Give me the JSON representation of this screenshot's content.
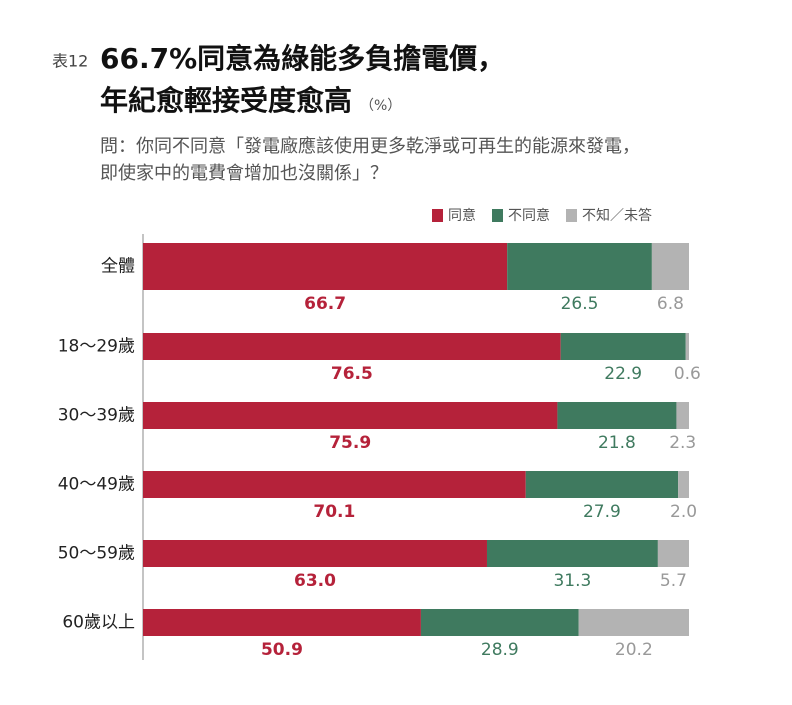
{
  "chart_data": {
    "type": "stacked_bar_horizontal",
    "label": "表12",
    "title_lines": [
      "66.7%同意為綠能多負擔電價，",
      "年紀愈輕接受度愈高"
    ],
    "unit": "（%）",
    "question_lines": [
      "問：你同不同意「發電廠應該使用更多乾淨或可再生的能源來發電，",
      "即使家中的電費會增加也沒關係」？"
    ],
    "categories": [
      "全體",
      "18～29歲",
      "30～39歲",
      "40～49歲",
      "50～59歲",
      "60歲以上"
    ],
    "xlim": [
      0,
      100
    ],
    "series": [
      {
        "name": "同意",
        "color": "#b5223a",
        "values": [
          66.7,
          76.5,
          75.9,
          70.1,
          63.0,
          50.9
        ],
        "value_labels": [
          "66.7",
          "76.5",
          "75.9",
          "70.1",
          "63.0",
          "50.9"
        ]
      },
      {
        "name": "不同意",
        "color": "#3f7a5f",
        "values": [
          26.5,
          22.9,
          21.8,
          27.9,
          31.3,
          28.9
        ],
        "value_labels": [
          "26.5",
          "22.9",
          "21.8",
          "27.9",
          "31.3",
          "28.9"
        ]
      },
      {
        "name": "不知／未答",
        "color": "#b3b3b3",
        "values": [
          6.8,
          0.6,
          2.3,
          2.0,
          5.7,
          20.2
        ],
        "value_labels": [
          "6.8",
          "0.6",
          "2.3",
          "2.0",
          "5.7",
          "20.2"
        ]
      }
    ]
  }
}
